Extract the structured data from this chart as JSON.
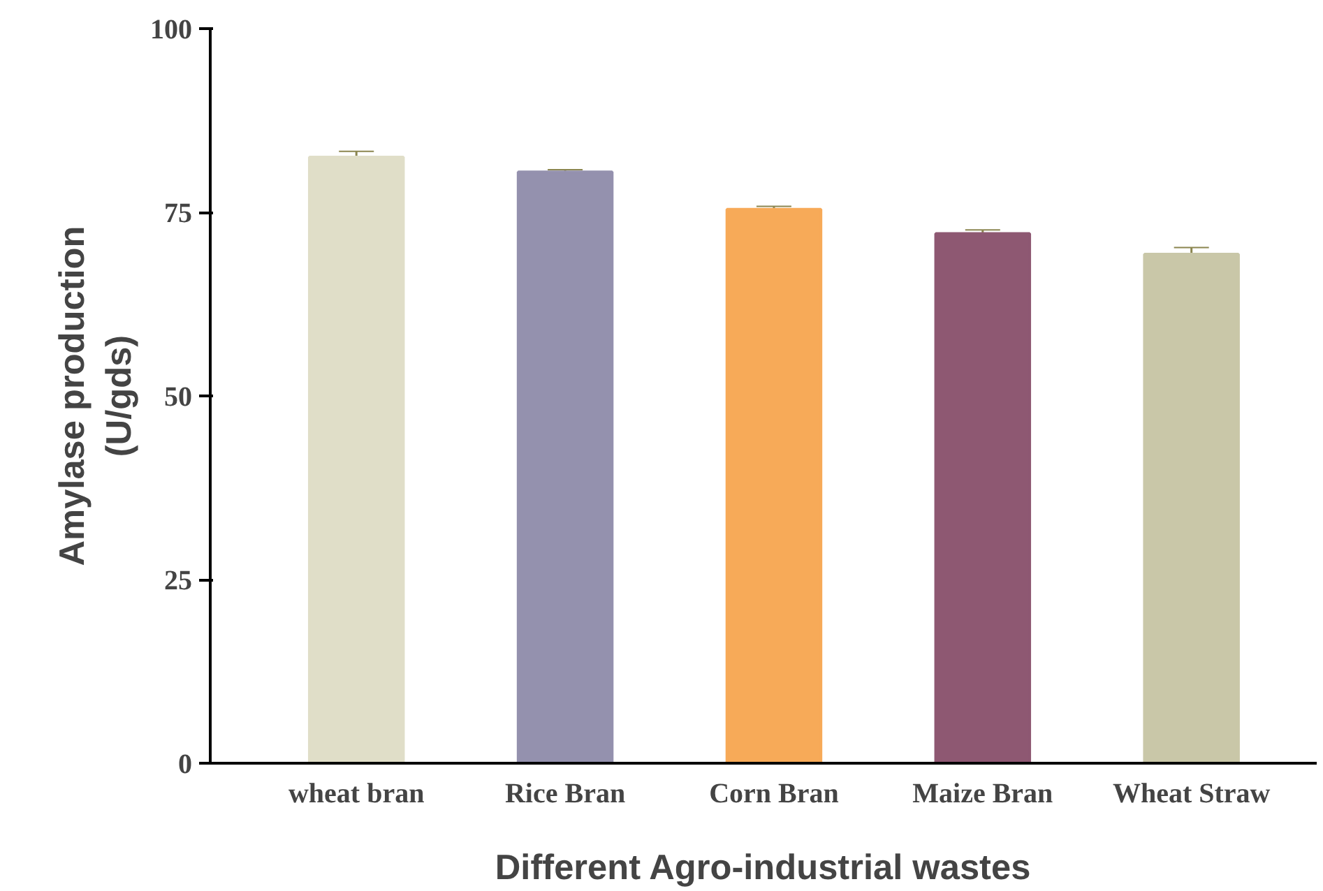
{
  "chart_data": {
    "type": "bar",
    "xlabel": "Different Agro-industrial wastes",
    "ylabel": "Amylase production\n(U/gds)",
    "categories": [
      "wheat bran",
      "Rice Bran",
      "Corn Bran",
      "Maize Bran",
      "Wheat Straw"
    ],
    "values": [
      82.5,
      80.5,
      75.4,
      72.1,
      69.3
    ],
    "errors": [
      0.8,
      0.3,
      0.4,
      0.5,
      0.9
    ],
    "colors": [
      "#e0dec8",
      "#9491ae",
      "#f7aa58",
      "#8e5872",
      "#c9c7a8"
    ],
    "ylim": [
      0,
      100
    ],
    "yticks": [
      0,
      25,
      50,
      75,
      100
    ],
    "grid": false
  }
}
